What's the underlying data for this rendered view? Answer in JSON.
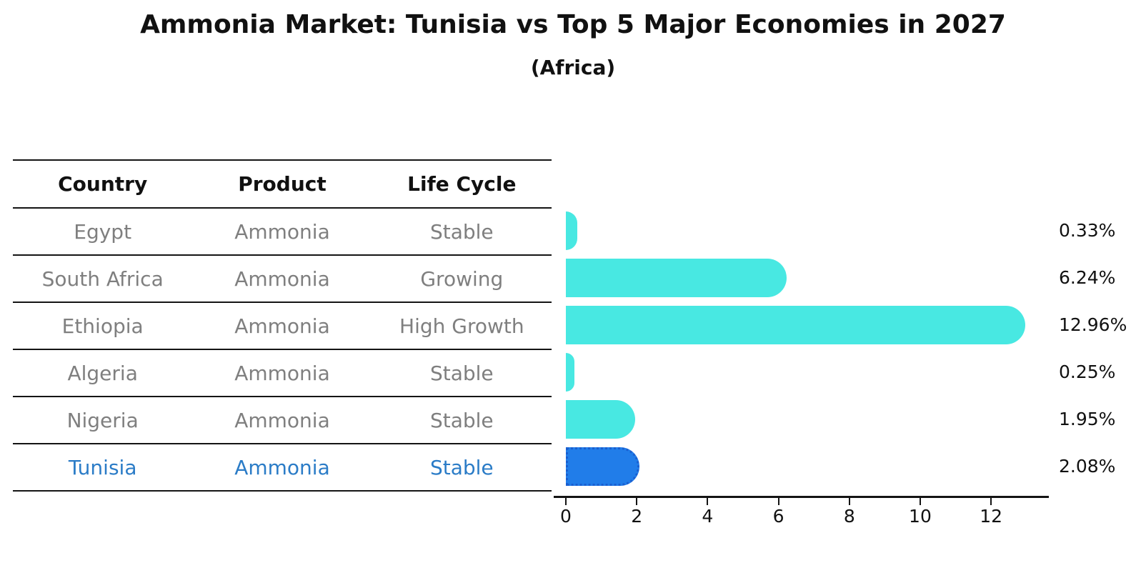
{
  "title": "Ammonia Market: Tunisia vs Top 5 Major Economies in 2027",
  "subtitle": "(Africa)",
  "table": {
    "headers": [
      "Country",
      "Product",
      "Life Cycle"
    ],
    "rows": [
      {
        "country": "Egypt",
        "product": "Ammonia",
        "life_cycle": "Stable",
        "highlight": false
      },
      {
        "country": "South Africa",
        "product": "Ammonia",
        "life_cycle": "Growing",
        "highlight": false
      },
      {
        "country": "Ethiopia",
        "product": "Ammonia",
        "life_cycle": "High Growth",
        "highlight": false
      },
      {
        "country": "Algeria",
        "product": "Ammonia",
        "life_cycle": "Stable",
        "highlight": false
      },
      {
        "country": "Nigeria",
        "product": "Ammonia",
        "life_cycle": "Stable",
        "highlight": false
      },
      {
        "country": "Tunisia",
        "product": "Ammonia",
        "life_cycle": "Stable",
        "highlight": true
      }
    ]
  },
  "chart_data": {
    "type": "bar",
    "orientation": "horizontal",
    "title": "Ammonia Market: Tunisia vs Top 5 Major Economies in 2027",
    "subtitle": "(Africa)",
    "categories": [
      "Egypt",
      "South Africa",
      "Ethiopia",
      "Algeria",
      "Nigeria",
      "Tunisia"
    ],
    "values": [
      0.33,
      6.24,
      12.96,
      0.25,
      1.95,
      2.08
    ],
    "value_labels": [
      "0.33%",
      "6.24%",
      "12.96%",
      "0.25%",
      "1.95%",
      "2.08%"
    ],
    "x_ticks": [
      0,
      2,
      4,
      6,
      8,
      10,
      12
    ],
    "xlim": [
      0,
      13.63
    ],
    "grid": false,
    "legend": false,
    "bar_color": "#48e8e2",
    "highlight_bar_color": "#217de9",
    "highlight_index": 5
  },
  "colors": {
    "text": "#111111",
    "muted_text": "#7f7f7f",
    "highlight_text": "#2b7cc7",
    "line": "#141414"
  }
}
